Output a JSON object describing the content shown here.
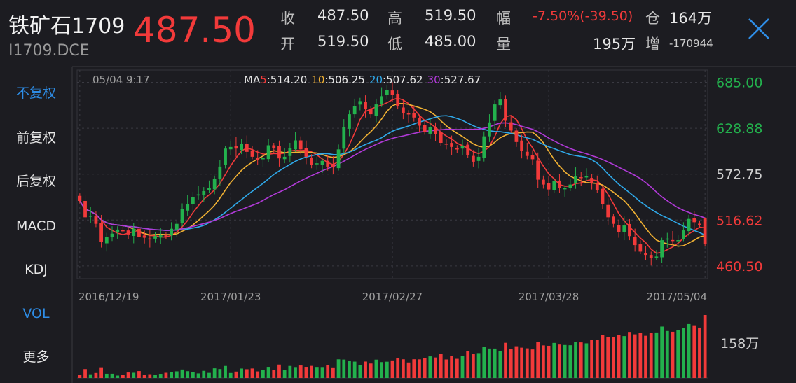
{
  "header": {
    "name": "铁矿石1709",
    "code": "I1709.DCE",
    "last_price": "487.50",
    "close_label": "收",
    "close_value": "487.50",
    "high_label": "高",
    "high_value": "519.50",
    "range_label": "幅",
    "range_value": "-7.50%(-39.50)",
    "oi_label": "仓",
    "oi_value": "164万",
    "open_label": "开",
    "open_value": "519.50",
    "low_label": "低",
    "low_value": "485.00",
    "vol_label": "量",
    "vol_value": "195万",
    "chg_label": "增",
    "chg_value": "-170944"
  },
  "sidebar": {
    "items": [
      {
        "label": "不复权",
        "active": true
      },
      {
        "label": "前复权",
        "active": false
      },
      {
        "label": "后复权",
        "active": false
      },
      {
        "label": "MACD",
        "active": false
      },
      {
        "label": "KDJ",
        "active": false
      },
      {
        "label": "VOL",
        "active": true
      },
      {
        "label": "更多",
        "active": false
      }
    ]
  },
  "colors": {
    "up": "#23b14d",
    "down": "#f23a3a",
    "accent": "#2e8de6",
    "ma5": "#f23a3a",
    "ma10": "#f2b233",
    "ma20": "#2fa8e8",
    "ma30": "#b13ad8"
  },
  "chart_data": {
    "type": "candlestick",
    "crosshair_time": "05/04 9:17",
    "ma_legend": [
      {
        "name": "MA5",
        "period": "5",
        "value": "514.20",
        "color": "#f23a3a"
      },
      {
        "name": "MA10",
        "period": "10",
        "value": "506.25",
        "color": "#f2b233"
      },
      {
        "name": "MA20",
        "period": "20",
        "value": "507.62",
        "color": "#2fa8e8"
      },
      {
        "name": "MA30",
        "period": "30",
        "value": "527.67",
        "color": "#b13ad8"
      }
    ],
    "prefix": "MA",
    "y_ticks": [
      {
        "value": 685.0,
        "label": "685.00",
        "color": "#23b14d"
      },
      {
        "value": 628.88,
        "label": "628.88",
        "color": "#23b14d"
      },
      {
        "value": 572.75,
        "label": "572.75",
        "color": "#cfcfcf"
      },
      {
        "value": 516.62,
        "label": "516.62",
        "color": "#f23a3a"
      },
      {
        "value": 460.5,
        "label": "460.50",
        "color": "#f23a3a"
      }
    ],
    "ylim": [
      445,
      700
    ],
    "x_ticks": [
      {
        "index": 0,
        "label": "2016/12/19"
      },
      {
        "index": 28,
        "label": "2017/01/23"
      },
      {
        "index": 58,
        "label": "2017/02/27"
      },
      {
        "index": 87,
        "label": "2017/03/28"
      },
      {
        "index": 116,
        "label": "2017/05/04"
      }
    ],
    "volume_label": "158万",
    "volume_max_wan": 195,
    "closes": [
      540,
      520,
      522,
      512,
      490,
      496,
      500,
      505,
      503,
      499,
      506,
      496,
      495,
      493,
      497,
      498,
      496,
      506,
      512,
      530,
      536,
      545,
      548,
      552,
      556,
      567,
      582,
      604,
      606,
      604,
      610,
      600,
      594,
      590,
      593,
      608,
      605,
      592,
      594,
      605,
      614,
      603,
      594,
      584,
      586,
      589,
      582,
      581,
      603,
      630,
      646,
      656,
      662,
      652,
      646,
      658,
      668,
      676,
      670,
      656,
      647,
      646,
      642,
      632,
      624,
      630,
      622,
      611,
      610,
      606,
      604,
      607,
      596,
      588,
      594,
      619,
      636,
      658,
      664,
      638,
      626,
      612,
      601,
      595,
      591,
      566,
      560,
      554,
      564,
      556,
      556,
      560,
      570,
      568,
      570,
      562,
      553,
      536,
      520,
      512,
      502,
      510,
      497,
      486,
      478,
      474,
      470,
      472,
      492,
      494,
      491,
      492,
      504,
      518,
      514,
      512,
      487
    ]
  }
}
